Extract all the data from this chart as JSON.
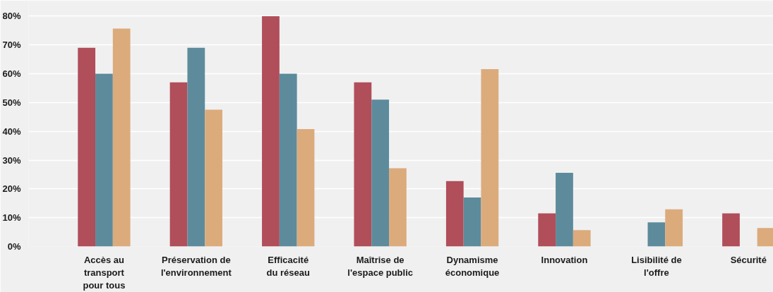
{
  "chart_data": {
    "type": "bar",
    "categories": [
      "Accès au\ntransport\npour tous",
      "Préservation de\nl'environnement",
      "Efficacité\ndu réseau",
      "Maîtrise de\nl'espace public",
      "Dynamisme\néconomique",
      "Innovation",
      "Lisibilité de\nl'offre",
      "Sécurité"
    ],
    "series": [
      {
        "color": "#b04e5a",
        "values": [
          69,
          57,
          80,
          57,
          22.7,
          11.5,
          null,
          11.5
        ]
      },
      {
        "color": "#5d8b9c",
        "values": [
          60,
          69,
          60,
          51,
          17,
          25.6,
          8.4,
          null
        ]
      },
      {
        "color": "#dcab7c",
        "values": [
          75.7,
          47.5,
          40.8,
          27.2,
          61.6,
          5.7,
          12.9,
          6.4
        ]
      }
    ],
    "ylim": [
      0,
      85
    ],
    "yticks": [
      {
        "value": 0,
        "label": "0%"
      },
      {
        "value": 10,
        "label": "10%"
      },
      {
        "value": 20,
        "label": "20%"
      },
      {
        "value": 30,
        "label": "30%"
      },
      {
        "value": 40,
        "label": "40%"
      },
      {
        "value": 50,
        "label": "50%"
      },
      {
        "value": 60,
        "label": "60%"
      },
      {
        "value": 70,
        "label": "70%"
      },
      {
        "value": 80,
        "label": "80%"
      }
    ],
    "grid": "y"
  }
}
